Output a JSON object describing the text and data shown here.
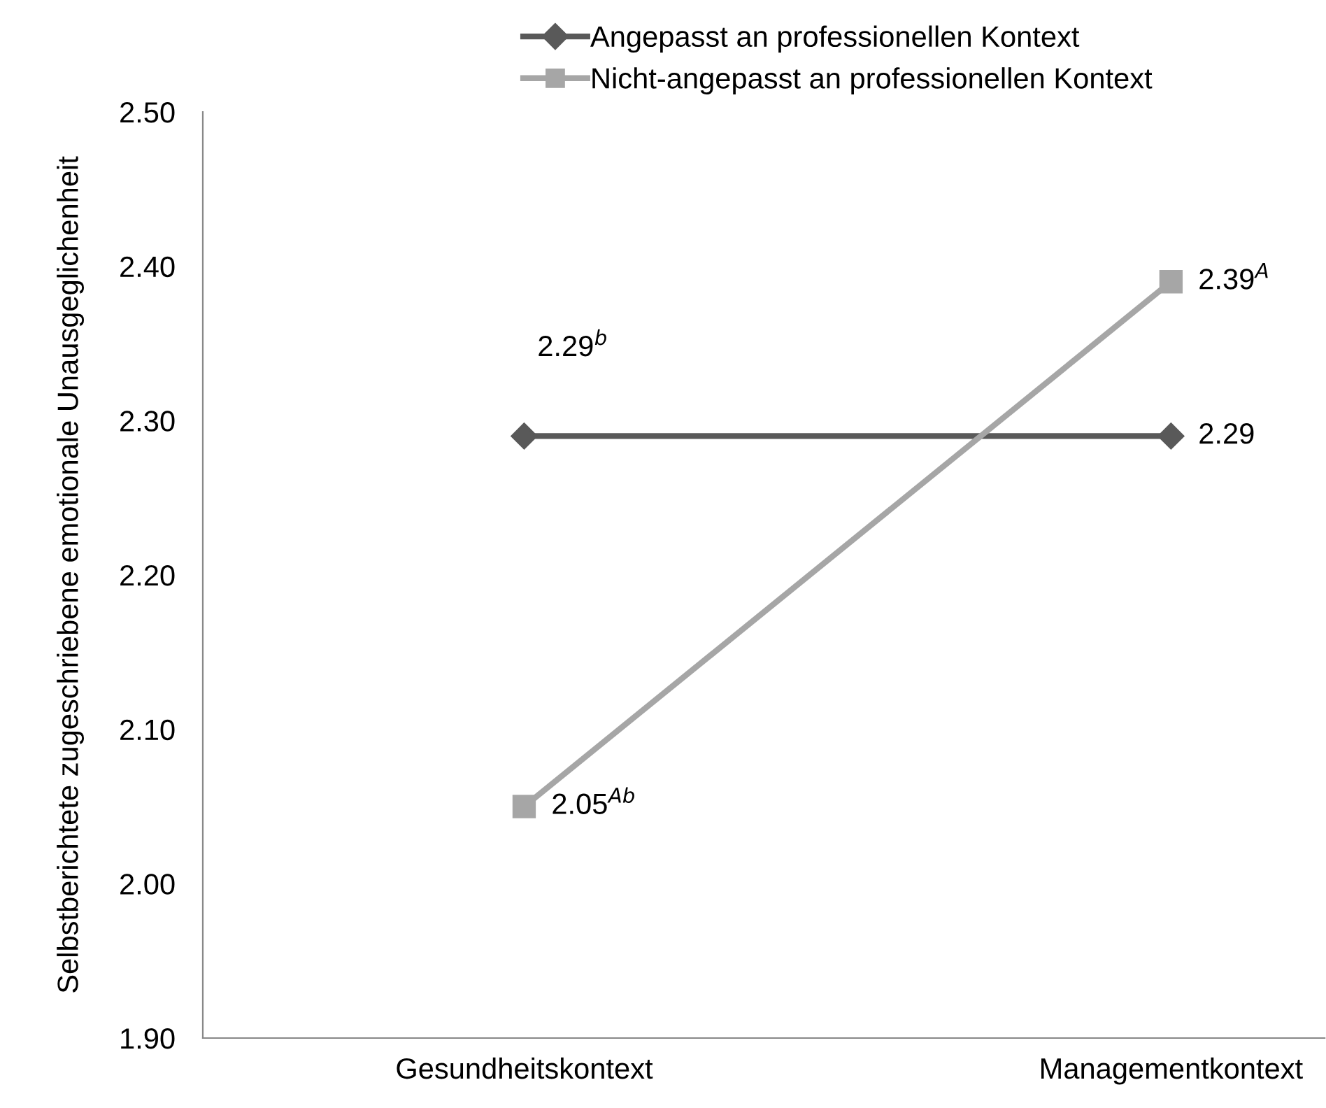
{
  "chart_data": {
    "type": "line",
    "ylabel": "Selbstberichtete zugeschriebene emotionale Unausgeglichenheit",
    "categories": [
      "Gesundheitskontext",
      "Managementkontext"
    ],
    "series": [
      {
        "name": "Angepasst an professionellen Kontext",
        "color": "#595959",
        "marker": "diamond",
        "values": [
          2.29,
          2.29
        ],
        "value_labels": [
          "2.29$^{b}$",
          "2.29"
        ]
      },
      {
        "name": "Nicht-angepasst an professionellen Kontext",
        "color": "#a6a6a6",
        "marker": "square",
        "values": [
          2.05,
          2.39
        ],
        "value_labels": [
          "2.05$^{Ab}$",
          "2.39$^{A}$"
        ]
      }
    ],
    "ylim": [
      1.9,
      2.5
    ],
    "yticks": [
      {
        "value": 1.9,
        "label": "1.90"
      },
      {
        "value": 2.0,
        "label": "2.00"
      },
      {
        "value": 2.1,
        "label": "2.10"
      },
      {
        "value": 2.2,
        "label": "2.20"
      },
      {
        "value": 2.3,
        "label": "2.30"
      },
      {
        "value": 2.4,
        "label": "2.40"
      },
      {
        "value": 2.5,
        "label": "2.50"
      }
    ],
    "grid": false,
    "legend": "top",
    "line_style": "solid"
  }
}
